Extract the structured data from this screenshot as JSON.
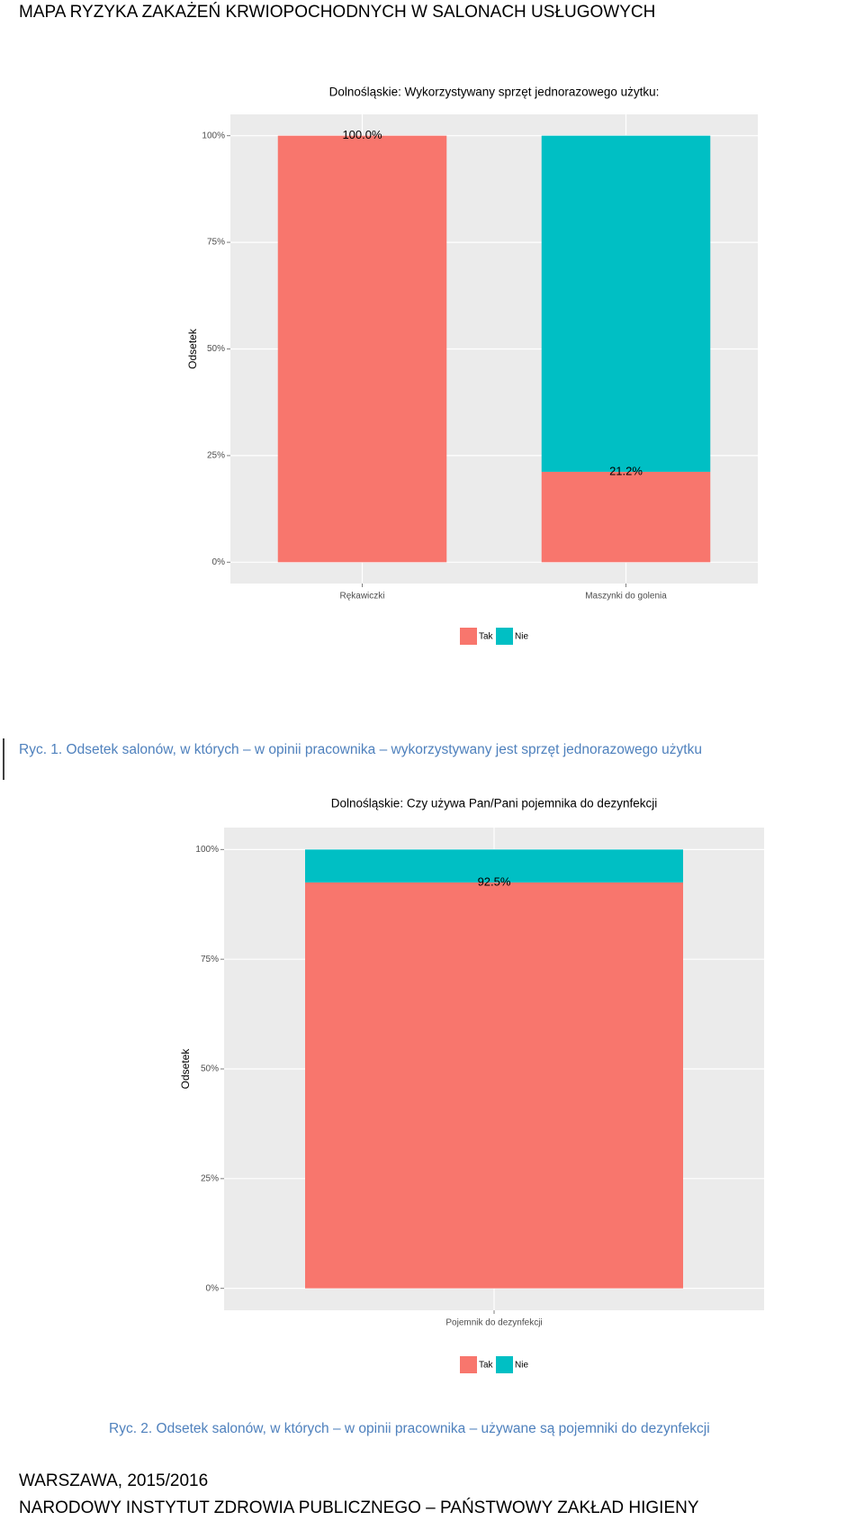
{
  "header": {
    "title": "MAPA RYZYKA ZAKAŻEŃ KRWIOPOCHODNYCH W SALONACH USŁUGOWYCH"
  },
  "chart_data": [
    {
      "type": "bar",
      "stacked": true,
      "title": "Dolnośląskie: Wykorzystywany sprzęt jednorazowego użytku:",
      "y_label": "Odsetek",
      "categories": [
        "Rękawiczki",
        "Maszynki do golenia"
      ],
      "series": [
        {
          "name": "Tak",
          "color": "#F8766D",
          "values": [
            100,
            21.2
          ],
          "value_labels": [
            "100.0%",
            "21.2%"
          ]
        },
        {
          "name": "Nie",
          "color": "#00BFC4",
          "values": [
            0,
            78.8
          ]
        }
      ],
      "ylim": [
        -5,
        105
      ],
      "yticks": [
        {
          "value": 0,
          "label": "0%"
        },
        {
          "value": 25,
          "label": "25%"
        },
        {
          "value": 50,
          "label": "50%"
        },
        {
          "value": 75,
          "label": "75%"
        },
        {
          "value": 100,
          "label": "100%"
        }
      ],
      "grid": true,
      "legend": "bottom"
    },
    {
      "type": "bar",
      "stacked": true,
      "title": "Dolnośląskie: Czy używa Pan/Pani pojemnika do dezynfekcji",
      "y_label": "Odsetek",
      "categories": [
        "Pojemnik do dezynfekcji"
      ],
      "series": [
        {
          "name": "Tak",
          "color": "#F8766D",
          "values": [
            92.5
          ],
          "value_labels": [
            "92.5%"
          ]
        },
        {
          "name": "Nie",
          "color": "#00BFC4",
          "values": [
            7.5
          ]
        }
      ],
      "ylim": [
        -5,
        105
      ],
      "yticks": [
        {
          "value": 0,
          "label": "0%"
        },
        {
          "value": 25,
          "label": "25%"
        },
        {
          "value": 50,
          "label": "50%"
        },
        {
          "value": 75,
          "label": "75%"
        },
        {
          "value": 100,
          "label": "100%"
        }
      ],
      "grid": true,
      "legend": "bottom"
    }
  ],
  "captions": [
    "Ryc. 1. Odsetek salonów, w których – w opinii pracownika – wykorzystywany jest sprzęt jednorazowego użytku",
    "Ryc. 2. Odsetek salonów, w których – w opinii pracownika – używane są pojemniki do dezynfekcji"
  ],
  "footer": {
    "place": "WARSZAWA, 2015/2016",
    "institution": "NARODOWY INSTYTUT ZDROWIA PUBLICZNEGO – PAŃSTWOWY ZAKŁAD HIGIENY"
  }
}
